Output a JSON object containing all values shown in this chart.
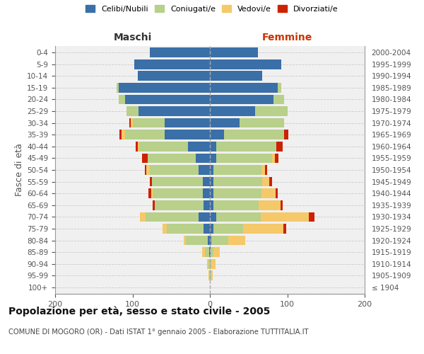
{
  "age_groups": [
    "100+",
    "95-99",
    "90-94",
    "85-89",
    "80-84",
    "75-79",
    "70-74",
    "65-69",
    "60-64",
    "55-59",
    "50-54",
    "45-49",
    "40-44",
    "35-39",
    "30-34",
    "25-29",
    "20-24",
    "15-19",
    "10-14",
    "5-9",
    "0-4"
  ],
  "birth_years": [
    "≤ 1904",
    "1905-1909",
    "1910-1914",
    "1915-1919",
    "1920-1924",
    "1925-1929",
    "1930-1934",
    "1935-1939",
    "1940-1944",
    "1945-1949",
    "1950-1954",
    "1955-1959",
    "1960-1964",
    "1965-1969",
    "1970-1974",
    "1975-1979",
    "1980-1984",
    "1985-1989",
    "1990-1994",
    "1995-1999",
    "2000-2004"
  ],
  "males": {
    "celibi": [
      0,
      0,
      0,
      1,
      3,
      8,
      15,
      8,
      9,
      9,
      15,
      18,
      28,
      58,
      58,
      92,
      110,
      118,
      93,
      98,
      78
    ],
    "coniugati": [
      0,
      1,
      2,
      5,
      28,
      48,
      68,
      63,
      65,
      66,
      63,
      62,
      63,
      52,
      42,
      16,
      8,
      3,
      0,
      0,
      0
    ],
    "vedovi": [
      0,
      1,
      2,
      4,
      3,
      5,
      7,
      0,
      2,
      0,
      4,
      0,
      2,
      4,
      2,
      0,
      0,
      0,
      0,
      0,
      0
    ],
    "divorziati": [
      0,
      0,
      0,
      0,
      0,
      0,
      0,
      3,
      3,
      3,
      2,
      8,
      3,
      3,
      2,
      0,
      0,
      0,
      0,
      0,
      0
    ]
  },
  "females": {
    "nubili": [
      0,
      0,
      0,
      1,
      2,
      5,
      8,
      5,
      5,
      5,
      5,
      8,
      8,
      18,
      38,
      58,
      82,
      88,
      68,
      92,
      62
    ],
    "coniugate": [
      0,
      2,
      2,
      4,
      22,
      38,
      58,
      58,
      62,
      63,
      62,
      72,
      78,
      78,
      58,
      42,
      14,
      4,
      0,
      0,
      0
    ],
    "vedove": [
      0,
      2,
      5,
      8,
      22,
      52,
      62,
      28,
      18,
      9,
      4,
      4,
      0,
      0,
      0,
      0,
      0,
      0,
      0,
      0,
      0
    ],
    "divorziate": [
      0,
      0,
      0,
      0,
      0,
      4,
      7,
      3,
      3,
      3,
      3,
      5,
      8,
      5,
      0,
      0,
      0,
      0,
      0,
      0,
      0
    ]
  },
  "color_celibi": "#3a6fa8",
  "color_coniugati": "#b8d08a",
  "color_vedovi": "#f5c96a",
  "color_divorziati": "#cc2200",
  "title": "Popolazione per età, sesso e stato civile - 2005",
  "subtitle": "COMUNE DI MOGORO (OR) - Dati ISTAT 1° gennaio 2005 - Elaborazione TUTTITALIA.IT",
  "xlabel_left": "Maschi",
  "xlabel_right": "Femmine",
  "ylabel_left": "Fasce di età",
  "xlim": 200,
  "bg_color": "#ffffff",
  "plot_bg": "#f0f0f0"
}
